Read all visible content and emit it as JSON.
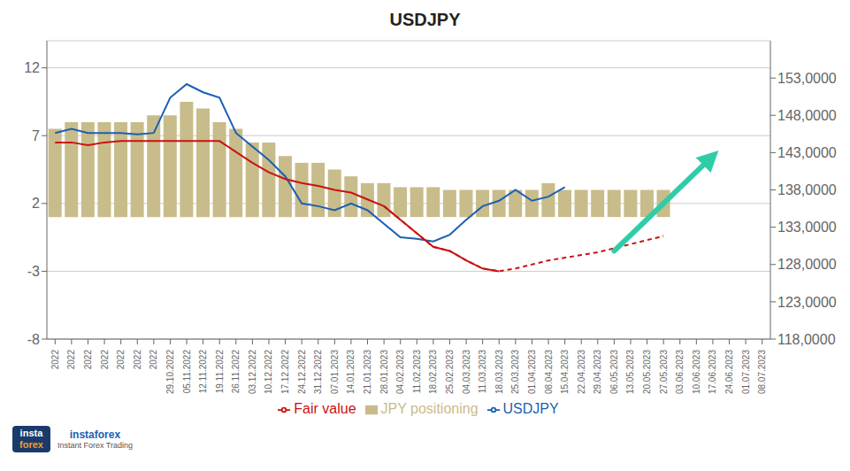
{
  "chart_data": {
    "type": "bar",
    "title": "USDJPY",
    "categories": [
      "2022",
      "2022",
      "2022",
      "2022",
      "2022",
      "2022",
      "2022",
      "29.10.2022",
      "05.11.2022",
      "12.11.2022",
      "19.11.2022",
      "26.11.2022",
      "03.12.2022",
      "10.12.2022",
      "17.12.2022",
      "24.12.2022",
      "31.12.2022",
      "07.01.2023",
      "14.01.2023",
      "21.01.2023",
      "28.01.2023",
      "04.02.2023",
      "11.02.2023",
      "18.02.2023",
      "25.02.2023",
      "04.03.2023",
      "11.03.2023",
      "18.03.2023",
      "25.03.2023",
      "01.04.2023",
      "08.04.2023",
      "15.04.2023",
      "22.04.2023",
      "29.04.2023",
      "06.05.2023",
      "13.05.2023",
      "20.05.2023",
      "27.05.2023",
      "03.06.2023",
      "10.06.2023",
      "17.06.2023",
      "24.06.2023",
      "01.07.2023",
      "08.07.2023"
    ],
    "series": [
      {
        "name": "JPY positioning",
        "type": "bar",
        "color": "#c8bc8a",
        "bottom": 1.0,
        "values": [
          6.5,
          7.0,
          7.0,
          7.0,
          7.0,
          7.0,
          7.5,
          7.5,
          8.5,
          8.0,
          7.0,
          6.5,
          5.5,
          5.5,
          4.5,
          4.0,
          4.0,
          3.5,
          3.0,
          2.5,
          2.5,
          2.2,
          2.2,
          2.2,
          2.0,
          2.0,
          2.0,
          2.0,
          2.0,
          2.0,
          2.5,
          2.0,
          2.0,
          2.0,
          2.0,
          2.0,
          2.0,
          2.0,
          0.0,
          0.0,
          0.0,
          0.0,
          0.0,
          0.0
        ]
      },
      {
        "name": "USDJPY",
        "type": "line",
        "color": "#1a5fb4",
        "line_style": "solid",
        "values": [
          7.2,
          7.5,
          7.2,
          7.2,
          7.2,
          7.1,
          7.2,
          9.8,
          10.8,
          10.2,
          9.8,
          7.2,
          6.2,
          5.2,
          4.0,
          2.0,
          1.8,
          1.5,
          2.0,
          1.5,
          0.5,
          -0.5,
          -0.6,
          -0.8,
          -0.3,
          0.8,
          1.8,
          2.2,
          3.0,
          2.2,
          2.5,
          3.2,
          null,
          null,
          null,
          null,
          null,
          null,
          null,
          null,
          null,
          null,
          null,
          null
        ]
      },
      {
        "name": "Fair value",
        "type": "line",
        "color": "#cc1111",
        "line_style": "solid",
        "values": [
          6.5,
          6.5,
          6.3,
          6.5,
          6.6,
          6.6,
          6.6,
          6.6,
          6.6,
          6.6,
          6.6,
          5.8,
          5.0,
          4.3,
          3.8,
          3.5,
          3.3,
          3.0,
          2.8,
          2.3,
          1.8,
          0.8,
          -0.2,
          -1.2,
          -1.5,
          -2.2,
          -2.8,
          -3.0,
          null,
          null,
          null,
          null,
          null,
          null,
          null,
          null,
          null,
          null,
          null,
          null,
          null,
          null,
          null,
          null
        ]
      },
      {
        "name": "Fair value",
        "type": "line",
        "color": "#cc1111",
        "line_style": "dashed",
        "values": [
          null,
          null,
          null,
          null,
          null,
          null,
          null,
          null,
          null,
          null,
          null,
          null,
          null,
          null,
          null,
          null,
          null,
          null,
          null,
          null,
          1.8,
          0.8,
          -0.2,
          -1.2,
          -1.5,
          -2.2,
          -2.8,
          -3.0,
          -2.8,
          -2.5,
          -2.2,
          -2.0,
          -1.8,
          -1.6,
          -1.3,
          -1.0,
          -0.7,
          -0.4,
          null,
          null,
          null,
          null,
          null,
          null
        ]
      }
    ],
    "ylim": [
      -8,
      14
    ],
    "yticks": [
      -8,
      -3,
      2,
      7,
      12
    ],
    "y2lim": [
      118000,
      158000
    ],
    "y2ticks": [
      {
        "value": 118000,
        "label": "118,0000"
      },
      {
        "value": 123000,
        "label": "123,0000"
      },
      {
        "value": 128000,
        "label": "128,0000"
      },
      {
        "value": 133000,
        "label": "133,0000"
      },
      {
        "value": 138000,
        "label": "138,0000"
      },
      {
        "value": 143000,
        "label": "143,0000"
      },
      {
        "value": 148000,
        "label": "148,0000"
      },
      {
        "value": 153000,
        "label": "153,0000"
      }
    ],
    "grid": true,
    "legend": "bottom",
    "arrow": {
      "from": [
        34,
        -1.5
      ],
      "to": [
        40,
        5.5
      ],
      "color": "#2ecda7"
    },
    "annotations": [
      "insta",
      "forex",
      "instaforex",
      "Instant Forex Trading"
    ]
  }
}
